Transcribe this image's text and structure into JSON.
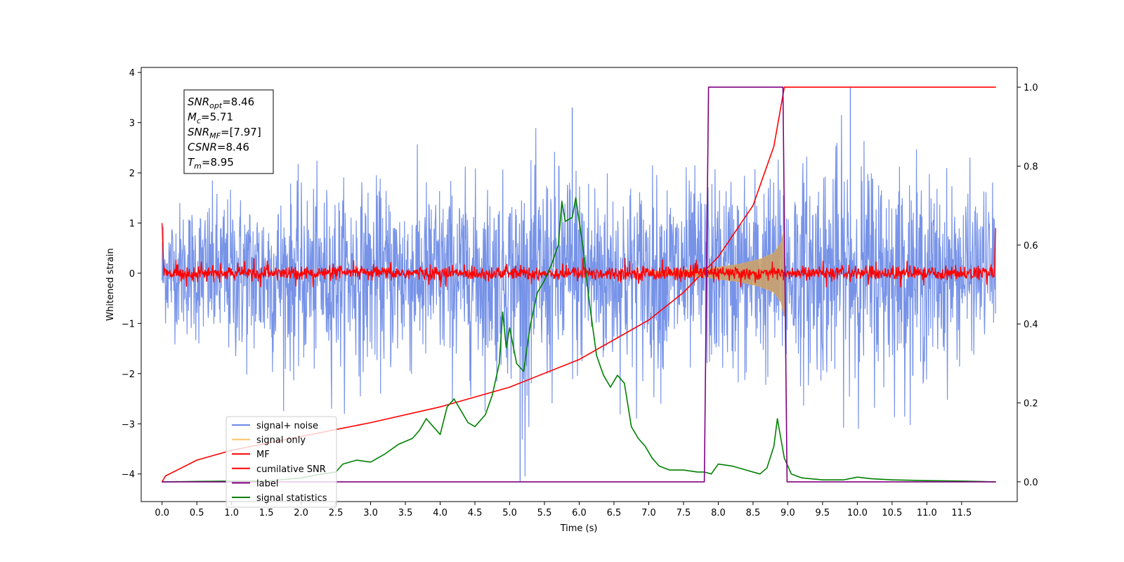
{
  "chart_data": {
    "type": "line",
    "xlabel": "Time (s)",
    "ylabel": "Whitened strain",
    "xlim": [
      -0.3,
      12.3
    ],
    "ylim_left": [
      -4.55,
      4.1
    ],
    "ylim_right": [
      -0.05,
      1.05
    ],
    "x_ticks": [
      0.0,
      0.5,
      1.0,
      1.5,
      2.0,
      2.5,
      3.0,
      3.5,
      4.0,
      4.5,
      5.0,
      5.5,
      6.0,
      6.5,
      7.0,
      7.5,
      8.0,
      8.5,
      9.0,
      9.5,
      10.0,
      10.5,
      11.0,
      11.5
    ],
    "x_tick_labels": [
      "0.0",
      "0.5",
      "1.0",
      "1.5",
      "2.0",
      "2.5",
      "3.0",
      "3.5",
      "4.0",
      "4.5",
      "5.0",
      "5.5",
      "6.0",
      "6.5",
      "7.0",
      "7.5",
      "8.0",
      "8.5",
      "9.0",
      "9.5",
      "10.0",
      "10.5",
      "11.0",
      "11.5"
    ],
    "y_left_ticks": [
      4,
      3,
      2,
      1,
      0,
      -1,
      -2,
      -3,
      -4
    ],
    "y_left_tick_labels": [
      "4",
      "3",
      "2",
      "1",
      "0",
      "−1",
      "−2",
      "−3",
      "−4"
    ],
    "y_right_ticks": [
      1.0,
      0.8,
      0.6,
      0.4,
      0.2,
      0.0
    ],
    "y_right_tick_labels": [
      "1.0",
      "0.8",
      "0.6",
      "0.4",
      "0.2",
      "0.0"
    ],
    "annotation": [
      {
        "base": "SNR",
        "sub": "opt",
        "value": "=8.46"
      },
      {
        "base": "M",
        "sub": "c",
        "value": "=5.71"
      },
      {
        "base": "SNR",
        "sub": "MF",
        "value": "=[7.97]"
      },
      {
        "base": "CSNR",
        "sub": "",
        "value": "=8.46"
      },
      {
        "base": "T",
        "sub": "m",
        "value": "=8.95"
      }
    ],
    "legend": {
      "placement": "lower-left",
      "entries": [
        {
          "label": "signal+ noise",
          "color": "#6b8ae6"
        },
        {
          "label": "signal only",
          "color": "#ffc266"
        },
        {
          "label": "MF",
          "color": "#ff0000"
        },
        {
          "label": "cumilative SNR",
          "color": "#ff0000"
        },
        {
          "label": "label",
          "color": "#800080"
        },
        {
          "label": "signal statistics",
          "color": "#008000"
        }
      ]
    },
    "series": [
      {
        "name": "signal+ noise",
        "axis": "left",
        "color": "#6b8ae6",
        "x_range": [
          0.0,
          11.99
        ],
        "envelope_upper": [
          [
            0.0,
            2.0
          ],
          [
            1.0,
            2.3
          ],
          [
            2.0,
            2.4
          ],
          [
            3.0,
            2.5
          ],
          [
            4.0,
            2.6
          ],
          [
            5.0,
            2.6
          ],
          [
            5.9,
            3.3
          ],
          [
            6.5,
            2.7
          ],
          [
            7.5,
            2.7
          ],
          [
            8.5,
            2.9
          ],
          [
            8.95,
            3.0
          ],
          [
            9.9,
            3.7
          ],
          [
            11.0,
            2.7
          ],
          [
            11.99,
            2.4
          ]
        ],
        "envelope_lower": [
          [
            0.0,
            -1.4
          ],
          [
            1.0,
            -2.6
          ],
          [
            2.0,
            -2.8
          ],
          [
            3.0,
            -2.8
          ],
          [
            4.0,
            -2.9
          ],
          [
            5.0,
            -2.9
          ],
          [
            5.15,
            -4.15
          ],
          [
            6.0,
            -2.9
          ],
          [
            7.0,
            -3.0
          ],
          [
            8.0,
            -2.9
          ],
          [
            9.0,
            -3.0
          ],
          [
            10.0,
            -3.1
          ],
          [
            11.0,
            -3.0
          ],
          [
            11.99,
            -1.6
          ]
        ]
      },
      {
        "name": "signal only",
        "axis": "left",
        "color": "#ffc266",
        "envelope": [
          [
            7.0,
            0.03
          ],
          [
            7.8,
            0.08
          ],
          [
            8.0,
            0.12
          ],
          [
            8.3,
            0.18
          ],
          [
            8.6,
            0.28
          ],
          [
            8.8,
            0.4
          ],
          [
            8.9,
            0.6
          ],
          [
            8.95,
            0.9
          ],
          [
            8.96,
            0.0
          ]
        ]
      },
      {
        "name": "MF",
        "axis": "left",
        "color": "#ff0000",
        "start_value": 1.0,
        "end_value": 0.9,
        "band": [
          -0.2,
          0.2
        ]
      },
      {
        "name": "cumilative SNR",
        "axis": "right",
        "color": "#ff0000",
        "points": [
          [
            0.0,
            0.0
          ],
          [
            0.05,
            0.015
          ],
          [
            0.5,
            0.055
          ],
          [
            1.0,
            0.08
          ],
          [
            2.0,
            0.115
          ],
          [
            3.0,
            0.15
          ],
          [
            4.0,
            0.19
          ],
          [
            5.0,
            0.24
          ],
          [
            6.0,
            0.31
          ],
          [
            7.0,
            0.41
          ],
          [
            7.5,
            0.48
          ],
          [
            8.0,
            0.57
          ],
          [
            8.5,
            0.7
          ],
          [
            8.8,
            0.85
          ],
          [
            8.95,
            1.0
          ],
          [
            11.99,
            1.0
          ]
        ]
      },
      {
        "name": "label",
        "axis": "right",
        "color": "#800080",
        "points": [
          [
            0.0,
            0.0
          ],
          [
            7.8,
            0.0
          ],
          [
            7.86,
            1.0
          ],
          [
            8.93,
            1.0
          ],
          [
            8.99,
            0.0
          ],
          [
            11.99,
            0.0
          ]
        ]
      },
      {
        "name": "signal statistics",
        "axis": "right",
        "color": "#008000",
        "points": [
          [
            0.0,
            0.0
          ],
          [
            0.5,
            0.001
          ],
          [
            1.0,
            0.002
          ],
          [
            1.5,
            0.002
          ],
          [
            2.0,
            0.01
          ],
          [
            2.3,
            0.02
          ],
          [
            2.5,
            0.025
          ],
          [
            2.6,
            0.045
          ],
          [
            2.8,
            0.055
          ],
          [
            3.0,
            0.05
          ],
          [
            3.2,
            0.07
          ],
          [
            3.4,
            0.095
          ],
          [
            3.6,
            0.11
          ],
          [
            3.7,
            0.13
          ],
          [
            3.8,
            0.16
          ],
          [
            3.9,
            0.14
          ],
          [
            4.0,
            0.12
          ],
          [
            4.1,
            0.19
          ],
          [
            4.2,
            0.21
          ],
          [
            4.3,
            0.18
          ],
          [
            4.4,
            0.15
          ],
          [
            4.5,
            0.14
          ],
          [
            4.65,
            0.17
          ],
          [
            4.75,
            0.22
          ],
          [
            4.85,
            0.3
          ],
          [
            4.9,
            0.43
          ],
          [
            4.95,
            0.34
          ],
          [
            5.0,
            0.39
          ],
          [
            5.1,
            0.3
          ],
          [
            5.2,
            0.28
          ],
          [
            5.3,
            0.4
          ],
          [
            5.4,
            0.48
          ],
          [
            5.5,
            0.51
          ],
          [
            5.6,
            0.55
          ],
          [
            5.7,
            0.6
          ],
          [
            5.75,
            0.71
          ],
          [
            5.8,
            0.66
          ],
          [
            5.9,
            0.67
          ],
          [
            5.95,
            0.72
          ],
          [
            6.05,
            0.6
          ],
          [
            6.15,
            0.45
          ],
          [
            6.25,
            0.32
          ],
          [
            6.35,
            0.27
          ],
          [
            6.45,
            0.24
          ],
          [
            6.55,
            0.27
          ],
          [
            6.65,
            0.25
          ],
          [
            6.75,
            0.14
          ],
          [
            6.85,
            0.11
          ],
          [
            6.95,
            0.09
          ],
          [
            7.05,
            0.06
          ],
          [
            7.15,
            0.04
          ],
          [
            7.3,
            0.03
          ],
          [
            7.5,
            0.03
          ],
          [
            7.7,
            0.025
          ],
          [
            7.8,
            0.025
          ],
          [
            7.9,
            0.02
          ],
          [
            8.0,
            0.045
          ],
          [
            8.2,
            0.04
          ],
          [
            8.4,
            0.03
          ],
          [
            8.6,
            0.02
          ],
          [
            8.7,
            0.035
          ],
          [
            8.8,
            0.09
          ],
          [
            8.85,
            0.16
          ],
          [
            8.9,
            0.11
          ],
          [
            8.95,
            0.06
          ],
          [
            9.05,
            0.02
          ],
          [
            9.2,
            0.01
          ],
          [
            9.5,
            0.005
          ],
          [
            9.8,
            0.005
          ],
          [
            10.0,
            0.012
          ],
          [
            10.2,
            0.008
          ],
          [
            10.5,
            0.005
          ],
          [
            11.0,
            0.003
          ],
          [
            11.5,
            0.002
          ],
          [
            11.99,
            0.0
          ]
        ]
      }
    ]
  }
}
